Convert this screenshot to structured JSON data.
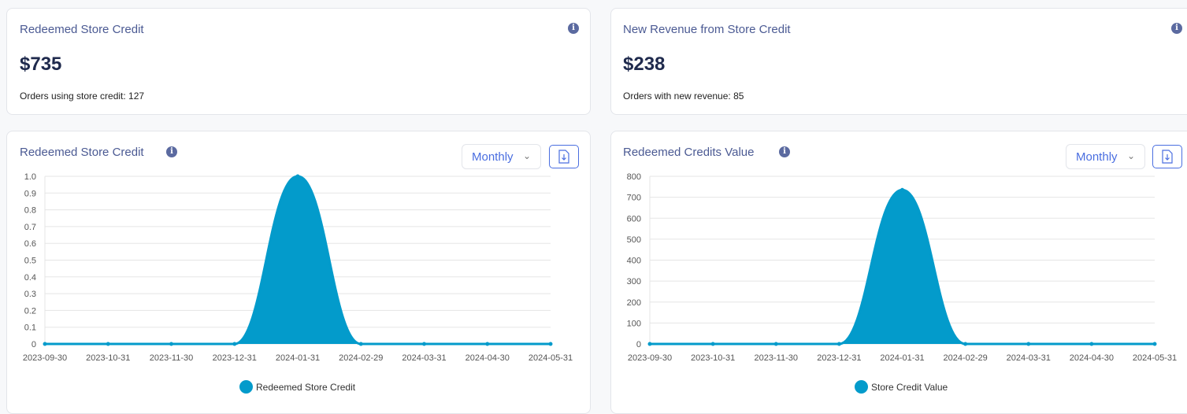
{
  "kpis": [
    {
      "title": "Redeemed Store Credit",
      "value": "$735",
      "sub": "Orders using store credit: 127"
    },
    {
      "title": "New Revenue from Store Credit",
      "value": "$238",
      "sub": "Orders with new revenue: 85"
    }
  ],
  "charts_ui": [
    {
      "title": "Redeemed Store Credit",
      "period": "Monthly"
    },
    {
      "title": "Redeemed Credits Value",
      "period": "Monthly"
    }
  ],
  "colors": {
    "series": "#039bcb",
    "title": "#4b5a93",
    "accent": "#4a6ee0"
  },
  "chart_data": [
    {
      "type": "area",
      "x": [
        "2023-09-30",
        "2023-10-31",
        "2023-11-30",
        "2023-12-31",
        "2024-01-31",
        "2024-02-29",
        "2024-03-31",
        "2024-04-30",
        "2024-05-31"
      ],
      "series": [
        {
          "name": "Redeemed Store Credit",
          "values": [
            0,
            0,
            0,
            0,
            1,
            0,
            0,
            0,
            0
          ]
        }
      ],
      "ylim": [
        0,
        1
      ],
      "yticks": [
        "0",
        "0.1",
        "0.2",
        "0.3",
        "0.4",
        "0.5",
        "0.6",
        "0.7",
        "0.8",
        "0.9",
        "1.0"
      ],
      "grid": true,
      "legend": "bottom"
    },
    {
      "type": "area",
      "x": [
        "2023-09-30",
        "2023-10-31",
        "2023-11-30",
        "2023-12-31",
        "2024-01-31",
        "2024-02-29",
        "2024-03-31",
        "2024-04-30",
        "2024-05-31"
      ],
      "series": [
        {
          "name": "Store Credit Value",
          "values": [
            0,
            0,
            0,
            0,
            735,
            0,
            0,
            0,
            0
          ]
        }
      ],
      "ylim": [
        0,
        800
      ],
      "yticks": [
        "0",
        "100",
        "200",
        "300",
        "400",
        "500",
        "600",
        "700",
        "800"
      ],
      "grid": true,
      "legend": "bottom"
    }
  ]
}
